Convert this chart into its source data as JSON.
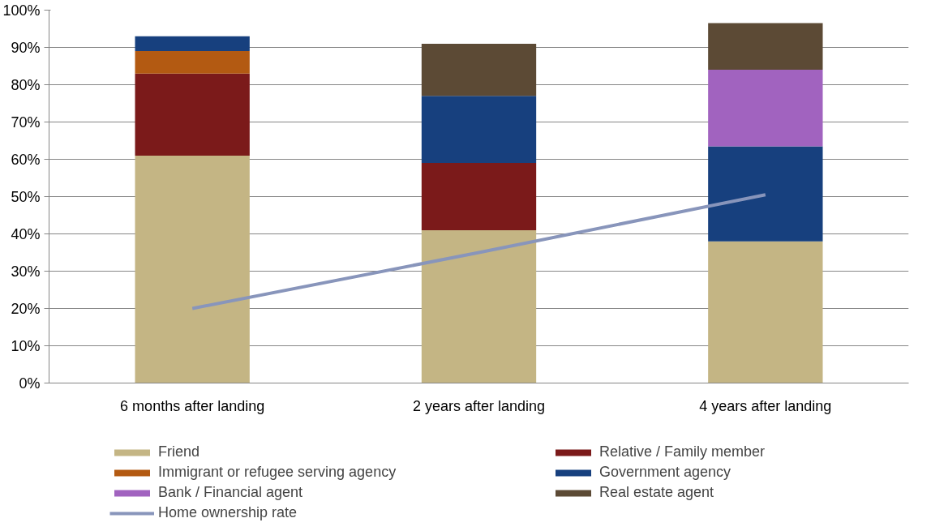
{
  "chart_data": {
    "type": "bar",
    "stacked": true,
    "categories": [
      "6 months after landing",
      "2 years after landing",
      "4 years after landing"
    ],
    "series": [
      {
        "name": "Friend",
        "color": "#c4b584",
        "values": [
          61,
          41,
          38
        ]
      },
      {
        "name": "Relative / Family member",
        "color": "#7b1a1a",
        "values": [
          22,
          18,
          null
        ]
      },
      {
        "name": "Immigrant or refugee serving agency",
        "color": "#b35a12",
        "values": [
          6,
          null,
          null
        ]
      },
      {
        "name": "Government agency",
        "color": "#17407e",
        "values": [
          4,
          18,
          25.5
        ]
      },
      {
        "name": "Bank / Financial agent",
        "color": "#a163bf",
        "values": [
          null,
          null,
          20.5
        ]
      },
      {
        "name": "Real estate agent",
        "color": "#5c4a35",
        "values": [
          null,
          14,
          12.5
        ]
      },
      {
        "name": "Home ownership rate",
        "type": "line",
        "color": "#8895bb",
        "values": [
          20,
          35,
          50.5
        ]
      }
    ],
    "ylim": [
      0,
      100
    ],
    "yticks": [
      {
        "value": 0,
        "label": "0%"
      },
      {
        "value": 10,
        "label": "10%"
      },
      {
        "value": 20,
        "label": "20%"
      },
      {
        "value": 30,
        "label": "30%"
      },
      {
        "value": 40,
        "label": "40%"
      },
      {
        "value": 50,
        "label": "50%"
      },
      {
        "value": 60,
        "label": "60%"
      },
      {
        "value": 70,
        "label": "70%"
      },
      {
        "value": 80,
        "label": "80%"
      },
      {
        "value": 90,
        "label": "90%"
      },
      {
        "value": 100,
        "label": "100%"
      }
    ],
    "grid": "y",
    "legend": "bottom"
  }
}
